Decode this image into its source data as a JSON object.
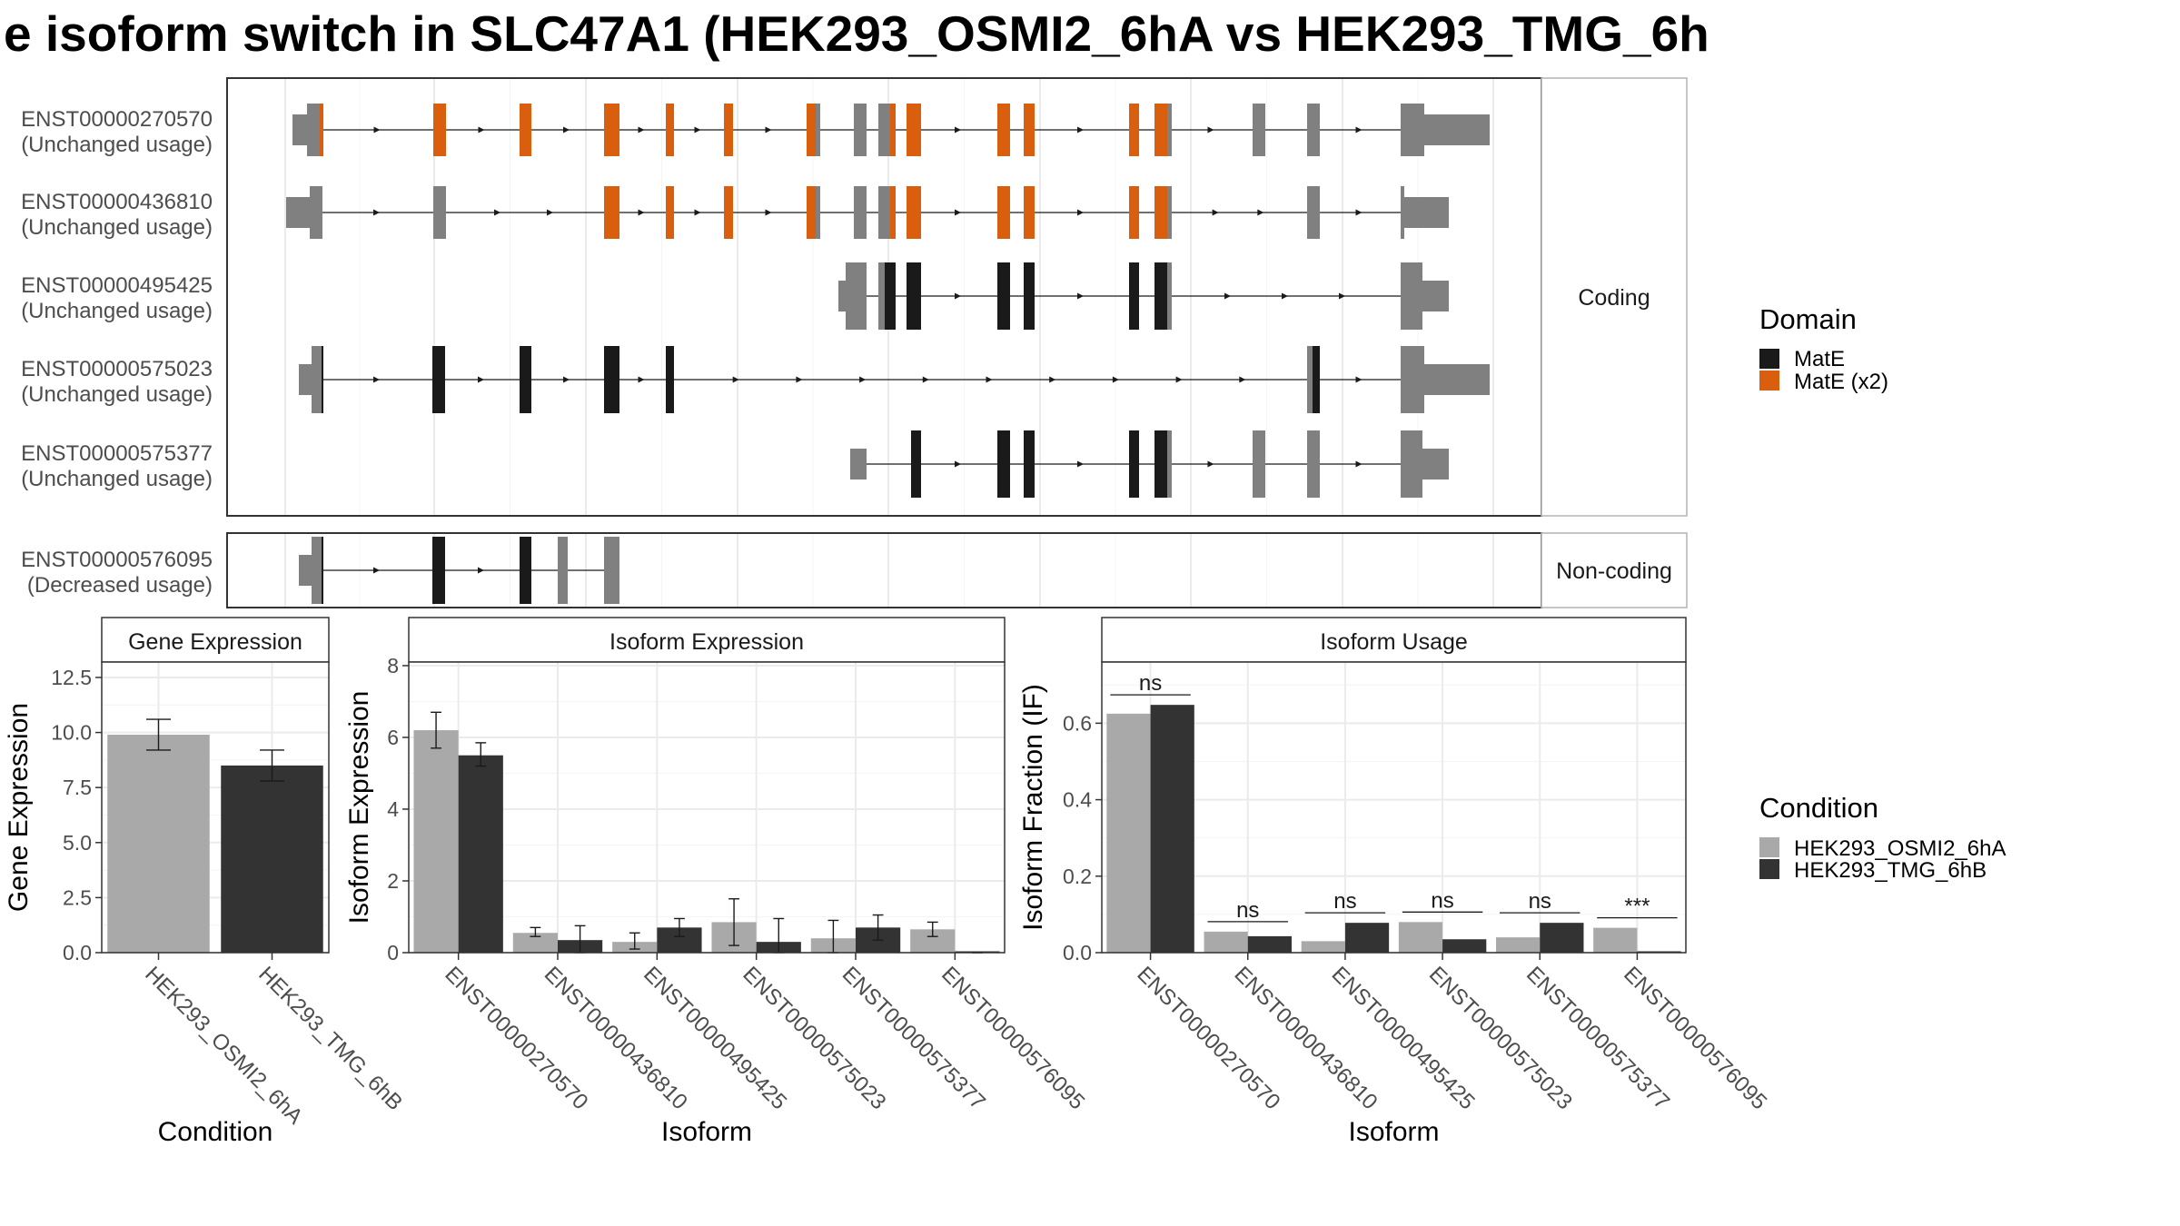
{
  "title": "e isoform switch in SLC47A1 (HEK293_OSMI2_6hA vs HEK293_TMG_6h",
  "colors": {
    "exon_grey": "#808080",
    "mate": "#1a1a1a",
    "mate_x2": "#d95f0e",
    "bar_condition_a": "#a9a9a9",
    "bar_condition_b": "#333333",
    "grid": "#ebebeb",
    "panel_border": "#333333",
    "strip_fill": "#ffffff"
  },
  "structure": {
    "coding_label": "Coding",
    "noncoding_label": "Non-coding",
    "domain_legend": {
      "title": "Domain",
      "items": [
        {
          "label": "MatE",
          "color": "#1a1a1a"
        },
        {
          "label": "MatE (x2)",
          "color": "#d95f0e"
        }
      ]
    },
    "transcripts": [
      {
        "id": "ENST00000270570",
        "usage": "(Unchanged usage)",
        "group": "coding"
      },
      {
        "id": "ENST00000436810",
        "usage": "(Unchanged usage)",
        "group": "coding"
      },
      {
        "id": "ENST00000495425",
        "usage": "(Unchanged usage)",
        "group": "coding"
      },
      {
        "id": "ENST00000575023",
        "usage": "(Unchanged usage)",
        "group": "coding"
      },
      {
        "id": "ENST00000575377",
        "usage": "(Unchanged usage)",
        "group": "coding"
      },
      {
        "id": "ENST00000576095",
        "usage": "(Decreased usage)",
        "group": "noncoding"
      }
    ]
  },
  "condition_legend": {
    "title": "Condition",
    "items": [
      {
        "label": "HEK293_OSMI2_6hA",
        "color": "#a9a9a9"
      },
      {
        "label": "HEK293_TMG_6hB",
        "color": "#333333"
      }
    ]
  },
  "chart_data": [
    {
      "type": "bar",
      "title": "Gene Expression",
      "xlabel": "Condition",
      "ylabel": "Gene Expression",
      "ylim": [
        0,
        13.2
      ],
      "yticks": [
        "0.0",
        "2.5",
        "5.0",
        "7.5",
        "10.0",
        "12.5"
      ],
      "categories": [
        "HEK293_OSMI2_6hA",
        "HEK293_TMG_6hB"
      ],
      "values": [
        9.9,
        8.5
      ],
      "error": [
        [
          9.2,
          10.6
        ],
        [
          7.8,
          9.2
        ]
      ]
    },
    {
      "type": "bar",
      "title": "Isoform Expression",
      "xlabel": "Isoform",
      "ylabel": "Isoform Expression",
      "ylim": [
        0,
        8.1
      ],
      "yticks": [
        "0",
        "2",
        "4",
        "6",
        "8"
      ],
      "categories": [
        "ENST00000270570",
        "ENST00000436810",
        "ENST00000495425",
        "ENST00000575023",
        "ENST00000575377",
        "ENST00000576095"
      ],
      "series": [
        {
          "name": "HEK293_OSMI2_6hA",
          "values": [
            6.2,
            0.55,
            0.3,
            0.85,
            0.4,
            0.65
          ],
          "error": [
            [
              5.7,
              6.7
            ],
            [
              0.45,
              0.7
            ],
            [
              0.1,
              0.55
            ],
            [
              0.2,
              1.5
            ],
            [
              0.0,
              0.9
            ],
            [
              0.45,
              0.85
            ]
          ]
        },
        {
          "name": "HEK293_TMG_6hB",
          "values": [
            5.5,
            0.35,
            0.7,
            0.3,
            0.7,
            0.0
          ],
          "error": [
            [
              5.2,
              5.85
            ],
            [
              0.0,
              0.75
            ],
            [
              0.45,
              0.95
            ],
            [
              0.0,
              0.95
            ],
            [
              0.35,
              1.05
            ],
            [
              0.0,
              0.0
            ]
          ]
        }
      ]
    },
    {
      "type": "bar",
      "title": "Isoform Usage",
      "xlabel": "Isoform",
      "ylabel": "Isoform Fraction (IF)",
      "ylim": [
        0,
        0.76
      ],
      "yticks": [
        "0.0",
        "0.2",
        "0.4",
        "0.6"
      ],
      "categories": [
        "ENST00000270570",
        "ENST00000436810",
        "ENST00000495425",
        "ENST00000575023",
        "ENST00000575377",
        "ENST00000576095"
      ],
      "series": [
        {
          "name": "HEK293_OSMI2_6hA",
          "values": [
            0.625,
            0.055,
            0.03,
            0.08,
            0.04,
            0.065
          ]
        },
        {
          "name": "HEK293_TMG_6hB",
          "values": [
            0.648,
            0.043,
            0.078,
            0.035,
            0.078,
            0.0
          ]
        }
      ],
      "significance": [
        "ns",
        "ns",
        "ns",
        "ns",
        "ns",
        "***"
      ]
    }
  ]
}
